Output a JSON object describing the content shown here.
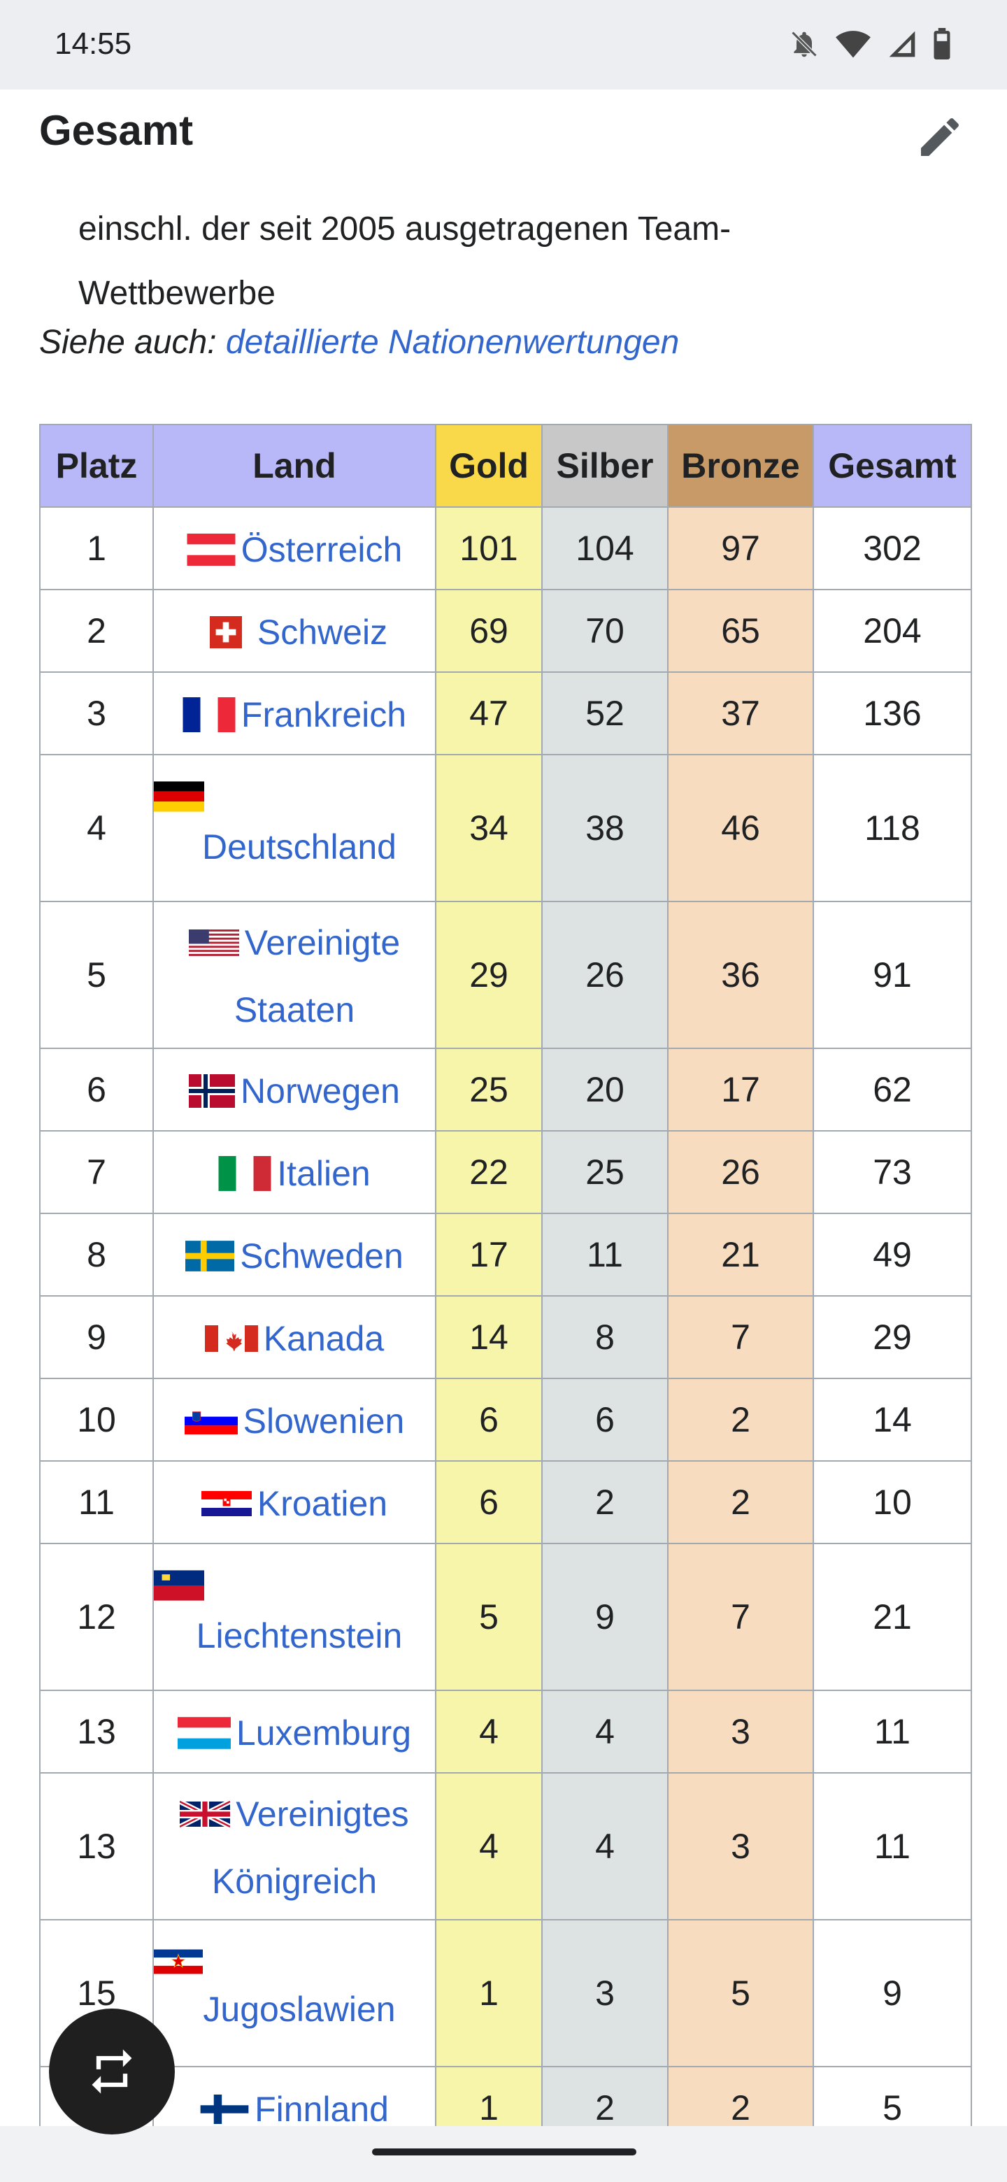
{
  "status_bar": {
    "time": "14:55",
    "icons": [
      "bell-off-icon",
      "wifi-icon",
      "signal-icon",
      "battery-icon"
    ]
  },
  "section": {
    "title": "Gesamt",
    "edit_icon": "pencil-icon",
    "note": "einschl. der seit 2005 ausgetragenen Team-Wettbewerbe",
    "see_also_label": "Siehe auch:",
    "see_also_link": "detaillierte Nationenwertungen"
  },
  "table": {
    "headers": {
      "platz": "Platz",
      "land": "Land",
      "gold": "Gold",
      "silber": "Silber",
      "bronze": "Bronze",
      "gesamt": "Gesamt"
    },
    "rows": [
      {
        "platz": "1",
        "land": "Österreich",
        "gold": "101",
        "silber": "104",
        "bronze": "97",
        "gesamt": "302"
      },
      {
        "platz": "2",
        "land": "Schweiz",
        "gold": "69",
        "silber": "70",
        "bronze": "65",
        "gesamt": "204"
      },
      {
        "platz": "3",
        "land": "Frankreich",
        "gold": "47",
        "silber": "52",
        "bronze": "37",
        "gesamt": "136"
      },
      {
        "platz": "4",
        "land": "Deutschland",
        "gold": "34",
        "silber": "38",
        "bronze": "46",
        "gesamt": "118"
      },
      {
        "platz": "5",
        "land": "Vereinigte Staaten",
        "gold": "29",
        "silber": "26",
        "bronze": "36",
        "gesamt": "91"
      },
      {
        "platz": "6",
        "land": "Norwegen",
        "gold": "25",
        "silber": "20",
        "bronze": "17",
        "gesamt": "62"
      },
      {
        "platz": "7",
        "land": "Italien",
        "gold": "22",
        "silber": "25",
        "bronze": "26",
        "gesamt": "73"
      },
      {
        "platz": "8",
        "land": "Schweden",
        "gold": "17",
        "silber": "11",
        "bronze": "21",
        "gesamt": "49"
      },
      {
        "platz": "9",
        "land": "Kanada",
        "gold": "14",
        "silber": "8",
        "bronze": "7",
        "gesamt": "29"
      },
      {
        "platz": "10",
        "land": "Slowenien",
        "gold": "6",
        "silber": "6",
        "bronze": "2",
        "gesamt": "14"
      },
      {
        "platz": "11",
        "land": "Kroatien",
        "gold": "6",
        "silber": "2",
        "bronze": "2",
        "gesamt": "10"
      },
      {
        "platz": "12",
        "land": "Liechtenstein",
        "gold": "5",
        "silber": "9",
        "bronze": "7",
        "gesamt": "21"
      },
      {
        "platz": "13",
        "land": "Luxemburg",
        "gold": "4",
        "silber": "4",
        "bronze": "3",
        "gesamt": "11"
      },
      {
        "platz": "13",
        "land": "Vereinigtes Königreich",
        "gold": "4",
        "silber": "4",
        "bronze": "3",
        "gesamt": "11"
      },
      {
        "platz": "15",
        "land": "Jugoslawien",
        "gold": "1",
        "silber": "3",
        "bronze": "5",
        "gesamt": "9"
      },
      {
        "platz": "16",
        "land": "Finnland",
        "gold": "1",
        "silber": "2",
        "bronze": "2",
        "gesamt": "5"
      }
    ]
  },
  "fab": {
    "icon": "repeat-icon"
  },
  "colors": {
    "link": "#3366cc",
    "header_bg": "#b8b8f8",
    "gold_header": "#f9d949",
    "silver_header": "#c8c8c8",
    "bronze_header": "#c89a68",
    "gold_cell": "#f7f5aa",
    "silver_cell": "#dde3e3",
    "bronze_cell": "#f8dcc0"
  }
}
